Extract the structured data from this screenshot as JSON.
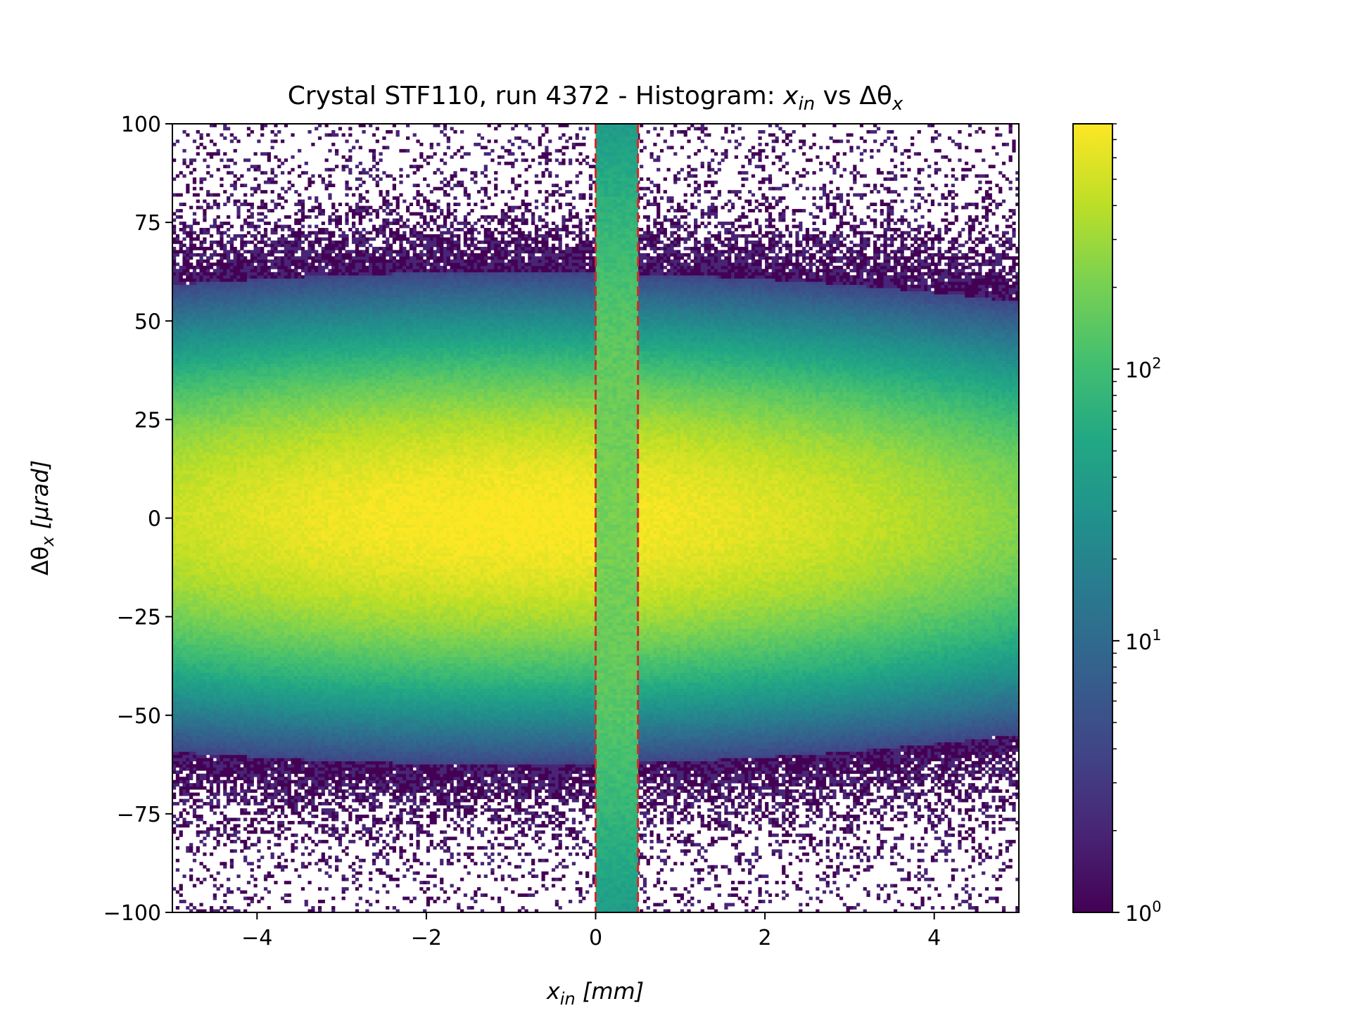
{
  "chart_data": {
    "type": "heatmap",
    "title": {
      "prefix": "Crystal STF110, run 4372 - Histogram: ",
      "x_symbol": "x",
      "x_sub": "in",
      "middle": " vs ",
      "y_symbol": "Δθ",
      "y_sub": "x"
    },
    "xlabel": {
      "symbol": "x",
      "sub": "in",
      "unit": " [mm]"
    },
    "ylabel": {
      "symbol": "Δθ",
      "sub": "x",
      "unit": " [μrad]"
    },
    "xlim": [
      -5,
      5
    ],
    "ylim": [
      -100,
      100
    ],
    "x_ticks": [
      -4,
      -2,
      0,
      2,
      4
    ],
    "y_ticks": [
      100,
      75,
      50,
      25,
      0,
      -25,
      -50,
      -75,
      -100
    ],
    "x_tick_labels": [
      "−4",
      "−2",
      "0",
      "2",
      "4"
    ],
    "y_tick_labels": [
      "100",
      "75",
      "50",
      "25",
      "0",
      "−25",
      "−50",
      "−75",
      "−100"
    ],
    "colormap": "viridis",
    "color_scale": "log",
    "colorbar": {
      "range": [
        1,
        800
      ],
      "major_ticks": [
        {
          "value": 1,
          "base": "10",
          "exp": "0"
        },
        {
          "value": 10,
          "base": "10",
          "exp": "1"
        },
        {
          "value": 100,
          "base": "10",
          "exp": "2"
        }
      ]
    },
    "distribution": {
      "peak_count": 800,
      "center_x": -1.0,
      "center_y": 0,
      "sigma_x_mm": 3.8,
      "sigma_y_urad": 19
    },
    "crystal_band": {
      "x_range": [
        0.0,
        0.5
      ],
      "peak_count": 200,
      "sigma_y_urad": 55,
      "outline_color": "#d62728",
      "outline_style": "dashed"
    }
  }
}
